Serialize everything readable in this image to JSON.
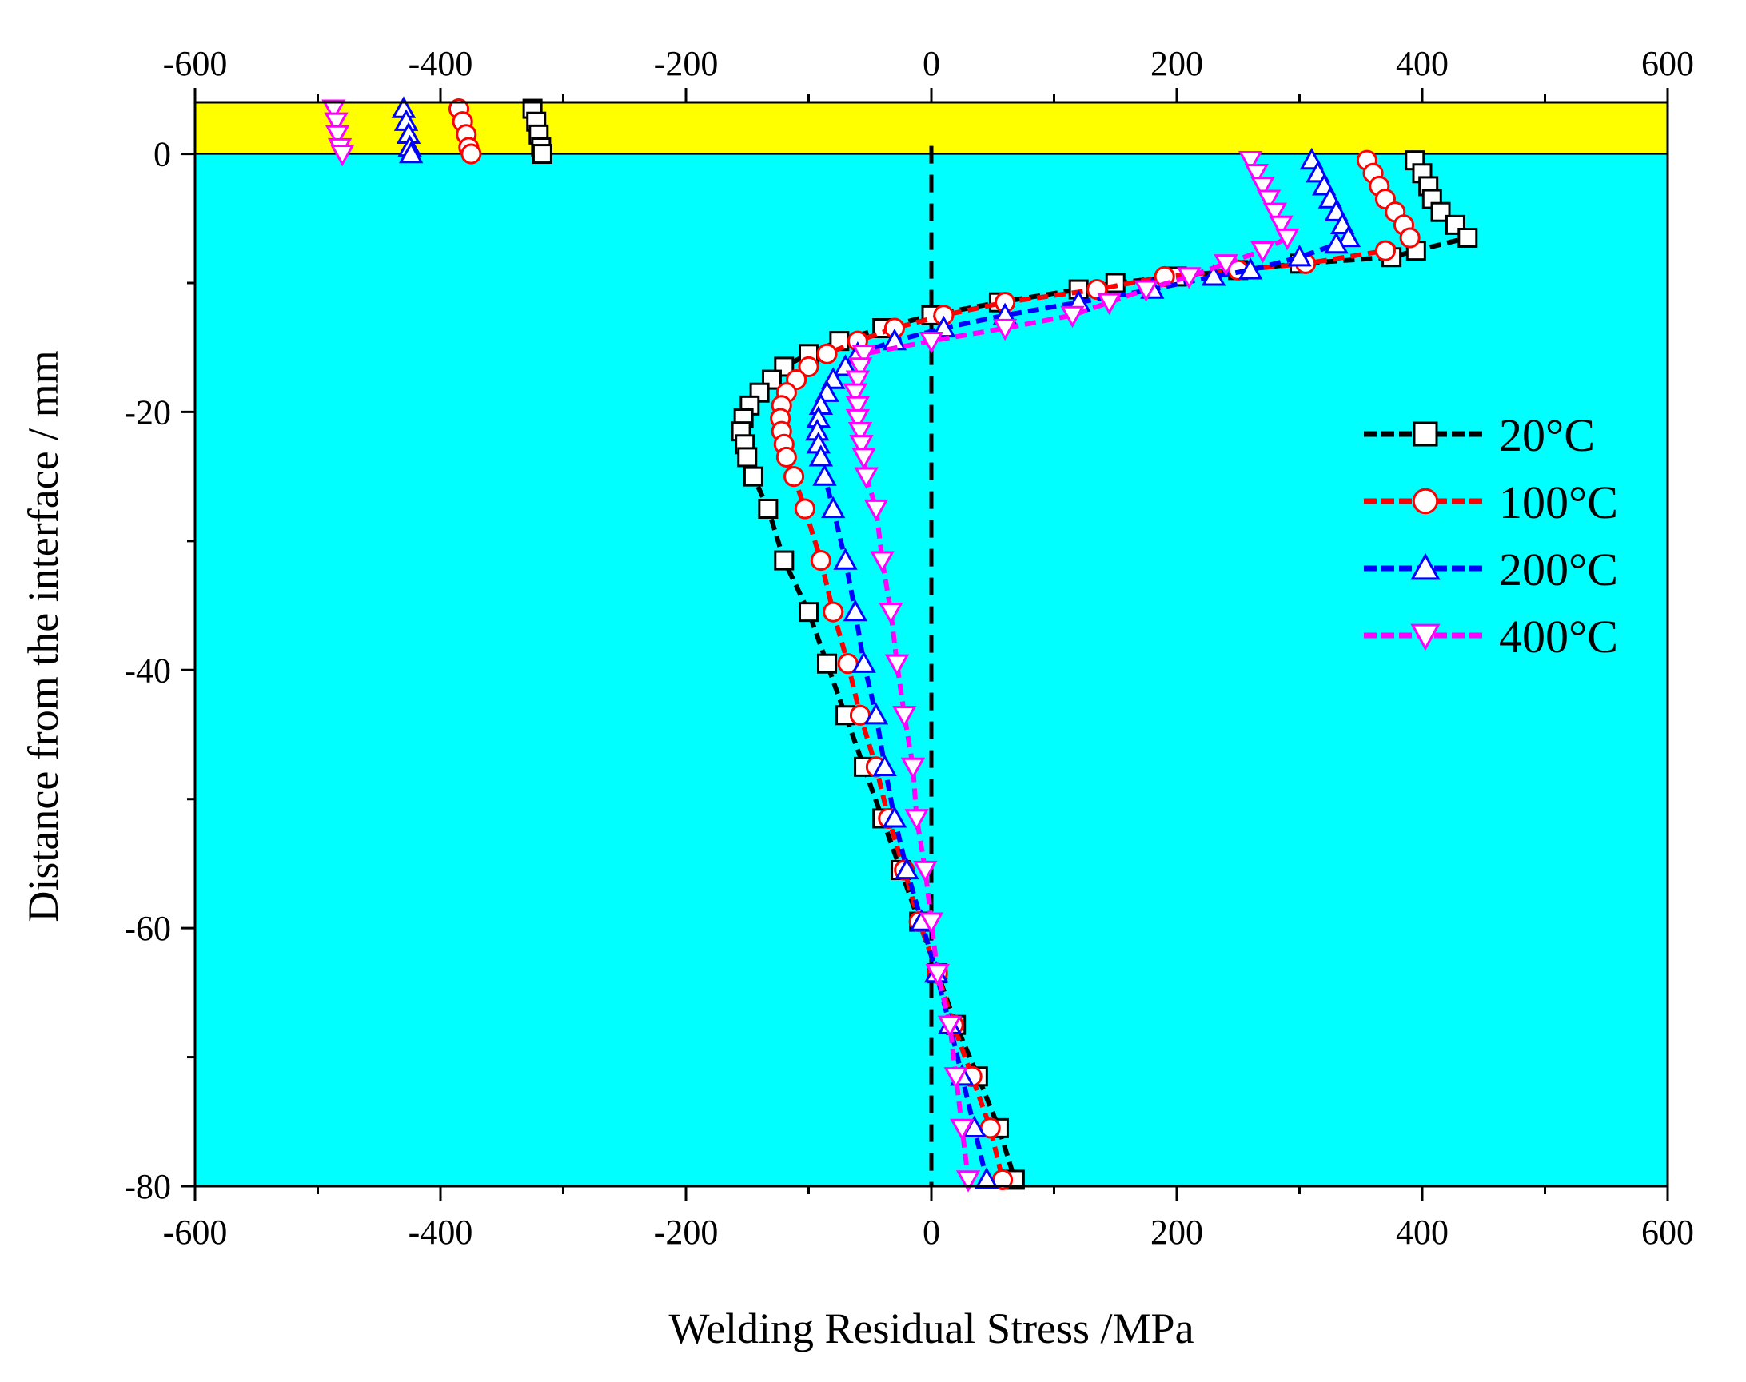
{
  "chart_data": {
    "type": "line",
    "title": "",
    "xlabel": "Welding Residual  Stress /MPa",
    "ylabel": "Distance from the interface / mm",
    "xlim": [
      -600,
      600
    ],
    "ylim": [
      -80,
      4
    ],
    "xticks": [
      -600,
      -400,
      -200,
      0,
      200,
      400,
      600
    ],
    "yticks": [
      0,
      -20,
      -40,
      -60,
      -80
    ],
    "grid": false,
    "legend": "right",
    "zero_line": 0,
    "regions": [
      {
        "name": "weld-layer",
        "y": [
          0,
          4
        ],
        "color": "#ffff00"
      },
      {
        "name": "base-metal",
        "y": [
          -80,
          0
        ],
        "color": "#00ffff"
      }
    ],
    "series": [
      {
        "name": "20°C",
        "color": "#000000",
        "marker": "square",
        "segments": [
          [
            [
              -325,
              3.5
            ],
            [
              -322,
              2.5
            ],
            [
              -320,
              1.5
            ],
            [
              -318,
              0.5
            ],
            [
              -317,
              0
            ]
          ],
          [
            [
              394,
              -0.5
            ],
            [
              400,
              -1.5
            ],
            [
              405,
              -2.5
            ],
            [
              408,
              -3.5
            ],
            [
              415,
              -4.5
            ],
            [
              427,
              -5.5
            ],
            [
              437,
              -6.5
            ],
            [
              395,
              -7.5
            ],
            [
              375,
              -8
            ],
            [
              300,
              -8.5
            ],
            [
              250,
              -9
            ],
            [
              200,
              -9.5
            ],
            [
              150,
              -10
            ],
            [
              120,
              -10.5
            ],
            [
              55,
              -11.5
            ],
            [
              0,
              -12.5
            ],
            [
              -40,
              -13.5
            ],
            [
              -75,
              -14.5
            ],
            [
              -100,
              -15.5
            ],
            [
              -120,
              -16.5
            ],
            [
              -130,
              -17.5
            ],
            [
              -140,
              -18.5
            ],
            [
              -148,
              -19.5
            ],
            [
              -153,
              -20.5
            ],
            [
              -155,
              -21.5
            ],
            [
              -152,
              -22.5
            ],
            [
              -150,
              -23.5
            ],
            [
              -145,
              -25
            ],
            [
              -133,
              -27.5
            ],
            [
              -120,
              -31.5
            ],
            [
              -100,
              -35.5
            ],
            [
              -85,
              -39.5
            ],
            [
              -70,
              -43.5
            ],
            [
              -55,
              -47.5
            ],
            [
              -40,
              -51.5
            ],
            [
              -25,
              -55.5
            ],
            [
              -10,
              -59.5
            ],
            [
              5,
              -63.5
            ],
            [
              20,
              -67.5
            ],
            [
              38,
              -71.5
            ],
            [
              55,
              -75.5
            ],
            [
              68,
              -79.5
            ]
          ]
        ]
      },
      {
        "name": "100°C",
        "color": "#ff0000",
        "marker": "circle",
        "segments": [
          [
            [
              -385,
              3.5
            ],
            [
              -382,
              2.5
            ],
            [
              -379,
              1.5
            ],
            [
              -377,
              0.5
            ],
            [
              -375,
              0
            ]
          ],
          [
            [
              355,
              -0.5
            ],
            [
              360,
              -1.5
            ],
            [
              365,
              -2.5
            ],
            [
              370,
              -3.5
            ],
            [
              378,
              -4.5
            ],
            [
              385,
              -5.5
            ],
            [
              390,
              -6.5
            ],
            [
              370,
              -7.5
            ],
            [
              305,
              -8.5
            ],
            [
              250,
              -9
            ],
            [
              190,
              -9.5
            ],
            [
              135,
              -10.5
            ],
            [
              60,
              -11.5
            ],
            [
              10,
              -12.5
            ],
            [
              -30,
              -13.5
            ],
            [
              -60,
              -14.5
            ],
            [
              -85,
              -15.5
            ],
            [
              -100,
              -16.5
            ],
            [
              -110,
              -17.5
            ],
            [
              -118,
              -18.5
            ],
            [
              -122,
              -19.5
            ],
            [
              -123,
              -20.5
            ],
            [
              -122,
              -21.5
            ],
            [
              -120,
              -22.5
            ],
            [
              -118,
              -23.5
            ],
            [
              -112,
              -25
            ],
            [
              -103,
              -27.5
            ],
            [
              -90,
              -31.5
            ],
            [
              -80,
              -35.5
            ],
            [
              -68,
              -39.5
            ],
            [
              -58,
              -43.5
            ],
            [
              -45,
              -47.5
            ],
            [
              -35,
              -51.5
            ],
            [
              -22,
              -55.5
            ],
            [
              -10,
              -59.5
            ],
            [
              5,
              -63.5
            ],
            [
              18,
              -67.5
            ],
            [
              33,
              -71.5
            ],
            [
              48,
              -75.5
            ],
            [
              58,
              -79.5
            ]
          ]
        ]
      },
      {
        "name": "200°C",
        "color": "#0000ff",
        "marker": "triangle-up",
        "segments": [
          [
            [
              -430,
              3.5
            ],
            [
              -428,
              2.5
            ],
            [
              -426,
              1.5
            ],
            [
              -425,
              0.5
            ],
            [
              -424,
              0
            ]
          ],
          [
            [
              310,
              -0.5
            ],
            [
              315,
              -1.5
            ],
            [
              320,
              -2.5
            ],
            [
              325,
              -3.5
            ],
            [
              330,
              -4.5
            ],
            [
              335,
              -5.5
            ],
            [
              340,
              -6.5
            ],
            [
              330,
              -7
            ],
            [
              300,
              -8
            ],
            [
              260,
              -9
            ],
            [
              230,
              -9.5
            ],
            [
              180,
              -10.5
            ],
            [
              120,
              -11.5
            ],
            [
              60,
              -12.5
            ],
            [
              10,
              -13.5
            ],
            [
              -30,
              -14.5
            ],
            [
              -60,
              -15.5
            ],
            [
              -70,
              -16.5
            ],
            [
              -80,
              -17.5
            ],
            [
              -85,
              -18.5
            ],
            [
              -90,
              -19.5
            ],
            [
              -92,
              -20.5
            ],
            [
              -93,
              -21.5
            ],
            [
              -92,
              -22.5
            ],
            [
              -90,
              -23.5
            ],
            [
              -87,
              -25
            ],
            [
              -80,
              -27.5
            ],
            [
              -70,
              -31.5
            ],
            [
              -62,
              -35.5
            ],
            [
              -55,
              -39.5
            ],
            [
              -45,
              -43.5
            ],
            [
              -38,
              -47.5
            ],
            [
              -30,
              -51.5
            ],
            [
              -20,
              -55.5
            ],
            [
              -8,
              -59.5
            ],
            [
              4,
              -63.5
            ],
            [
              15,
              -67.5
            ],
            [
              25,
              -71.5
            ],
            [
              35,
              -75.5
            ],
            [
              45,
              -79.5
            ]
          ]
        ]
      },
      {
        "name": "400°C",
        "color": "#ff00ff",
        "marker": "triangle-down",
        "segments": [
          [
            [
              -487,
              3.5
            ],
            [
              -485,
              2.5
            ],
            [
              -484,
              1.5
            ],
            [
              -482,
              0.5
            ],
            [
              -480,
              0
            ]
          ],
          [
            [
              260,
              -0.5
            ],
            [
              265,
              -1.5
            ],
            [
              270,
              -2.5
            ],
            [
              275,
              -3.5
            ],
            [
              280,
              -4.5
            ],
            [
              285,
              -5.5
            ],
            [
              290,
              -6.5
            ],
            [
              270,
              -7.5
            ],
            [
              240,
              -8.5
            ],
            [
              210,
              -9.5
            ],
            [
              175,
              -10.5
            ],
            [
              145,
              -11.5
            ],
            [
              115,
              -12.5
            ],
            [
              60,
              -13.5
            ],
            [
              0,
              -14.5
            ],
            [
              -55,
              -15.5
            ],
            [
              -58,
              -16.5
            ],
            [
              -60,
              -17.5
            ],
            [
              -62,
              -18.5
            ],
            [
              -60,
              -19.5
            ],
            [
              -60,
              -20.5
            ],
            [
              -58,
              -21.5
            ],
            [
              -57,
              -22.5
            ],
            [
              -55,
              -23.5
            ],
            [
              -53,
              -25
            ],
            [
              -45,
              -27.5
            ],
            [
              -40,
              -31.5
            ],
            [
              -33,
              -35.5
            ],
            [
              -28,
              -39.5
            ],
            [
              -22,
              -43.5
            ],
            [
              -15,
              -47.5
            ],
            [
              -12,
              -51.5
            ],
            [
              -5,
              -55.5
            ],
            [
              0,
              -59.5
            ],
            [
              5,
              -63.5
            ],
            [
              15,
              -67.5
            ],
            [
              20,
              -71.5
            ],
            [
              25,
              -75.5
            ],
            [
              30,
              -79.5
            ]
          ]
        ]
      }
    ]
  }
}
